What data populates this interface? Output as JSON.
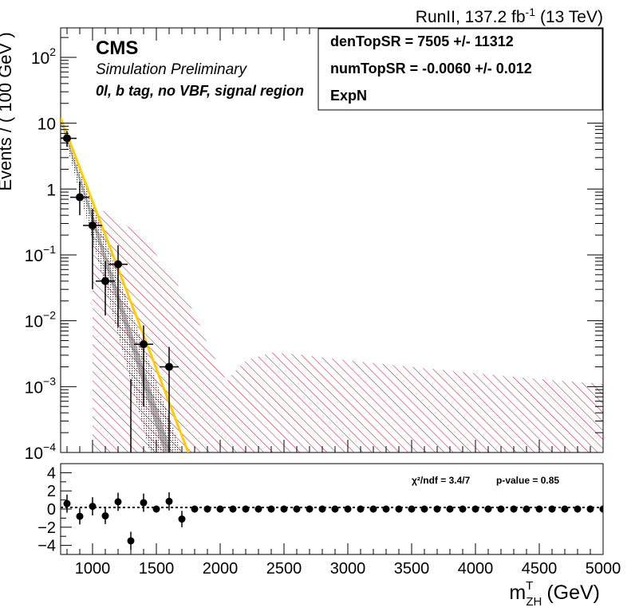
{
  "header": {
    "lumi_prefix": "RunII, 137.2 fb",
    "lumi_exp": "-1",
    "lumi_suffix": "(13 TeV)"
  },
  "labels": {
    "cms": "CMS",
    "sim": "Simulation Preliminary",
    "region": "0l, b tag, no VBF, signal region"
  },
  "fitbox": {
    "line1": "denTopSR =  7505 +/- 11312",
    "line2": "numTopSR = -0.0060 +/- 0.012",
    "line3": "ExpN"
  },
  "stats": {
    "chi2": "χ²/ndf = 3.4/7",
    "pvalue": "p-value = 0.85"
  },
  "colors": {
    "fit": "#ffcc00",
    "band": "#c8102e",
    "data": "#000000",
    "fit_band": "#555555"
  },
  "chart_data": [
    {
      "type": "scatter",
      "yscale": "log",
      "xlim": [
        750,
        5000
      ],
      "ylim": [
        0.0001,
        280
      ],
      "ylabel": "Events / ( 100 GeV )",
      "ytick_labels": [
        {
          "v": 100,
          "base": "10",
          "exp": "2"
        },
        {
          "v": 10,
          "base": "10",
          "exp": ""
        },
        {
          "v": 1,
          "base": "1",
          "exp": ""
        },
        {
          "v": 0.1,
          "base": "10",
          "exp": "−1"
        },
        {
          "v": 0.01,
          "base": "10",
          "exp": "−2"
        },
        {
          "v": 0.001,
          "base": "10",
          "exp": "−3"
        },
        {
          "v": 0.0001,
          "base": "10",
          "exp": "−4"
        }
      ],
      "points": [
        {
          "x": 800,
          "y": 5.9,
          "lo": 4.4,
          "hi": 7.6
        },
        {
          "x": 900,
          "y": 0.75,
          "lo": 0.4,
          "hi": 1.3
        },
        {
          "x": 1000,
          "y": 0.28,
          "lo": 0.03,
          "hi": 0.5
        },
        {
          "x": 1100,
          "y": 0.04,
          "lo": 0.012,
          "hi": 0.08
        },
        {
          "x": 1200,
          "y": 0.072,
          "lo": 0.008,
          "hi": 0.14
        },
        {
          "x": 1300,
          "y": null
        },
        {
          "x": 1400,
          "y": 0.0044,
          "lo": 0.0005,
          "hi": 0.0085
        },
        {
          "x": 1600,
          "y": 0.002,
          "lo": 0.0001,
          "hi": 0.004
        }
      ],
      "fit_curve": [
        {
          "x": 750,
          "y": 12
        },
        {
          "x": 1750,
          "y": 0.0001
        }
      ],
      "uncertainty_band_upper": [
        {
          "x": 1000,
          "y": 0.55
        },
        {
          "x": 1100,
          "y": 0.45
        },
        {
          "x": 1200,
          "y": 0.35
        },
        {
          "x": 1300,
          "y": 0.25
        },
        {
          "x": 1400,
          "y": 0.17
        },
        {
          "x": 1500,
          "y": 0.1
        },
        {
          "x": 1600,
          "y": 0.055
        },
        {
          "x": 1700,
          "y": 0.028
        },
        {
          "x": 1800,
          "y": 0.013
        },
        {
          "x": 1900,
          "y": 0.0045
        },
        {
          "x": 2000,
          "y": 0.0019
        },
        {
          "x": 2050,
          "y": 0.0012
        },
        {
          "x": 2100,
          "y": 0.0016
        },
        {
          "x": 2200,
          "y": 0.0025
        },
        {
          "x": 2400,
          "y": 0.0033
        },
        {
          "x": 2600,
          "y": 0.0031
        },
        {
          "x": 3000,
          "y": 0.0025
        },
        {
          "x": 3500,
          "y": 0.002
        },
        {
          "x": 4000,
          "y": 0.0016
        },
        {
          "x": 4500,
          "y": 0.0013
        },
        {
          "x": 5000,
          "y": 0.0011
        }
      ]
    },
    {
      "type": "scatter",
      "xlim": [
        750,
        5000
      ],
      "ylim": [
        -5.0,
        5.0
      ],
      "xlabel_base": "m",
      "xlabel_sup": "T",
      "xlabel_sub": "ZH",
      "xlabel_unit": "(GeV)",
      "yticks": [
        -4,
        -2,
        0,
        2,
        4
      ],
      "xticks": [
        1000,
        1500,
        2000,
        2500,
        3000,
        3500,
        4000,
        4500,
        5000
      ],
      "points": [
        {
          "x": 800,
          "y": 0.6,
          "err": 1.0
        },
        {
          "x": 900,
          "y": -0.8,
          "err": 0.9
        },
        {
          "x": 1000,
          "y": 0.3,
          "err": 1.0
        },
        {
          "x": 1100,
          "y": -0.75,
          "err": 0.9
        },
        {
          "x": 1200,
          "y": 0.8,
          "err": 1.0
        },
        {
          "x": 1300,
          "y": -3.5,
          "err": 1.0
        },
        {
          "x": 1400,
          "y": 0.7,
          "err": 1.0
        },
        {
          "x": 1500,
          "y": 0.0,
          "err": 0
        },
        {
          "x": 1600,
          "y": 0.85,
          "err": 1.0
        },
        {
          "x": 1700,
          "y": -1.1,
          "err": 0.9
        },
        {
          "x": 1800,
          "y": 0,
          "err": 0
        },
        {
          "x": 1900,
          "y": 0,
          "err": 0
        },
        {
          "x": 2000,
          "y": 0,
          "err": 0
        },
        {
          "x": 2100,
          "y": 0,
          "err": 0
        },
        {
          "x": 2200,
          "y": 0,
          "err": 0
        },
        {
          "x": 2300,
          "y": 0,
          "err": 0
        },
        {
          "x": 2400,
          "y": 0,
          "err": 0
        },
        {
          "x": 2500,
          "y": 0,
          "err": 0
        },
        {
          "x": 2600,
          "y": 0,
          "err": 0
        },
        {
          "x": 2700,
          "y": 0,
          "err": 0
        },
        {
          "x": 2800,
          "y": 0,
          "err": 0
        },
        {
          "x": 2900,
          "y": 0,
          "err": 0
        },
        {
          "x": 3000,
          "y": 0,
          "err": 0
        },
        {
          "x": 3100,
          "y": 0,
          "err": 0
        },
        {
          "x": 3200,
          "y": 0,
          "err": 0
        },
        {
          "x": 3300,
          "y": 0,
          "err": 0
        },
        {
          "x": 3400,
          "y": 0,
          "err": 0
        },
        {
          "x": 3500,
          "y": 0,
          "err": 0
        },
        {
          "x": 3600,
          "y": 0,
          "err": 0
        },
        {
          "x": 3700,
          "y": 0,
          "err": 0
        },
        {
          "x": 3800,
          "y": 0,
          "err": 0
        },
        {
          "x": 3900,
          "y": 0,
          "err": 0
        },
        {
          "x": 4000,
          "y": 0,
          "err": 0
        },
        {
          "x": 4100,
          "y": 0,
          "err": 0
        },
        {
          "x": 4200,
          "y": 0,
          "err": 0
        },
        {
          "x": 4300,
          "y": 0,
          "err": 0
        },
        {
          "x": 4400,
          "y": 0,
          "err": 0
        },
        {
          "x": 4500,
          "y": 0,
          "err": 0
        },
        {
          "x": 4600,
          "y": 0,
          "err": 0
        },
        {
          "x": 4700,
          "y": 0,
          "err": 0
        },
        {
          "x": 4800,
          "y": 0,
          "err": 0
        },
        {
          "x": 4900,
          "y": 0,
          "err": 0
        },
        {
          "x": 5000,
          "y": 0,
          "err": 0
        }
      ]
    }
  ]
}
